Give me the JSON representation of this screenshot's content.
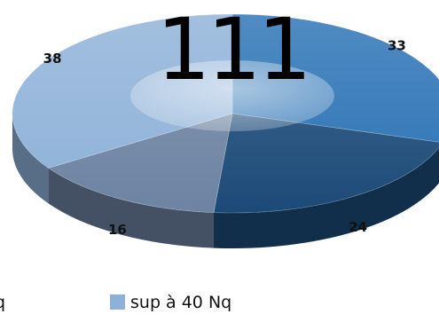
{
  "chart_data": {
    "type": "pie",
    "style": "3d-doughnut-perspective",
    "total_label": "111",
    "slices": [
      {
        "label": "33",
        "value": 33,
        "color": "#2a72b5"
      },
      {
        "label": "24",
        "value": 24,
        "color": "#1c4a78"
      },
      {
        "label": "16",
        "value": 16,
        "color": "#6d83a2"
      },
      {
        "label": "38",
        "value": 38,
        "color": "#8eb1d8"
      }
    ],
    "legend": {
      "items": [
        {
          "label": "q",
          "color": "#6d83a2"
        },
        {
          "label": "sup à 40 Nq",
          "color": "#8eb1d8"
        }
      ]
    }
  }
}
